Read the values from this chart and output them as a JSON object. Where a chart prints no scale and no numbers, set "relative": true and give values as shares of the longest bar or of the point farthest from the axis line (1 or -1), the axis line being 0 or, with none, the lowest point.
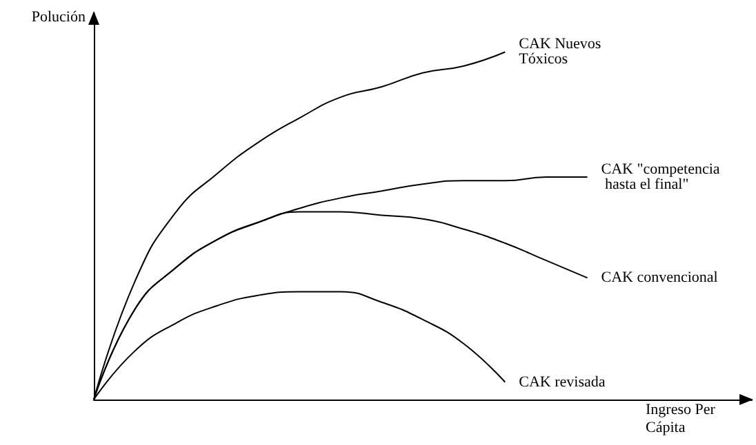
{
  "chart_data": {
    "type": "line",
    "relative": true,
    "xlabel": "Ingreso Per Cápita",
    "ylabel": "Polución",
    "legend": false,
    "grid": false,
    "marker": "none",
    "line_style": "solid",
    "categories": [
      null,
      null,
      null,
      null,
      null,
      null,
      null,
      null,
      null,
      null,
      null,
      null,
      null,
      null,
      null,
      null,
      null
    ],
    "series": [
      {
        "name": "CAK Nuevos Tóxicos",
        "color": "#000000",
        "values": [
          0,
          0.34,
          0.54,
          0.65,
          0.74,
          0.81,
          0.87,
          0.9,
          0.94,
          0.96,
          1.0,
          null,
          null,
          null,
          null,
          null,
          null
        ]
      },
      {
        "name": "CAK \"competencia hasta el final\"",
        "color": "#000000",
        "values": [
          0,
          0.26,
          0.38,
          0.46,
          0.51,
          0.55,
          0.58,
          0.6,
          0.62,
          0.63,
          0.63,
          0.64,
          0.64,
          null,
          null,
          null,
          null
        ]
      },
      {
        "name": "CAK convencional",
        "color": "#000000",
        "values": [
          0,
          0.26,
          0.38,
          0.46,
          0.51,
          0.54,
          0.54,
          0.53,
          0.52,
          0.49,
          0.45,
          0.4,
          0.35,
          null,
          null,
          null,
          null
        ]
      },
      {
        "name": "CAK revisada",
        "color": "#000000",
        "values": [
          0,
          0.14,
          0.22,
          0.27,
          0.3,
          0.31,
          0.31,
          0.28,
          0.23,
          0.16,
          0.05,
          null,
          null,
          null,
          null,
          null,
          null
        ]
      }
    ]
  }
}
